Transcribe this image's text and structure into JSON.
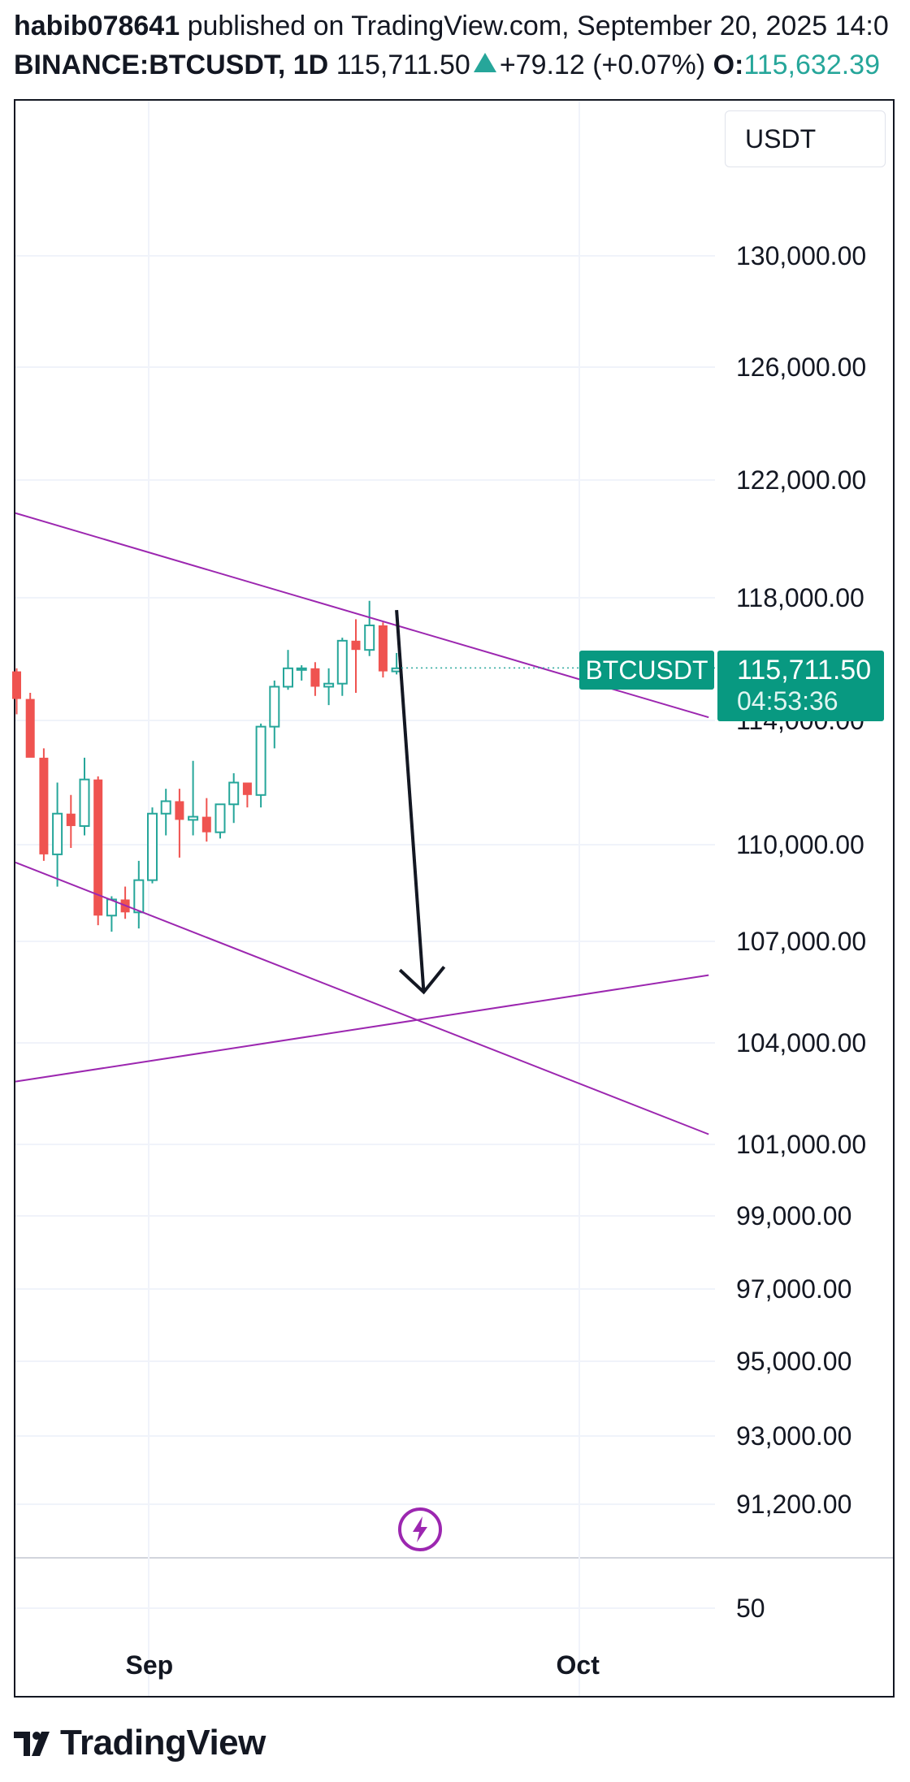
{
  "header": {
    "author": "habib078641",
    "published_text": "published on TradingView.com, September 20, 2025 14:0",
    "symbol": "BINANCE:BTCUSDT, 1D",
    "last_price": "115,711.50",
    "change": "+79.12 (+0.07%)",
    "open_label": "O:",
    "open_value": "115,632.39"
  },
  "currency": "USDT",
  "price_tag": {
    "symbol": "BTCUSDT",
    "price": "115,711.50",
    "countdown": "04:53:36"
  },
  "logo_text": "TradingView",
  "colors": {
    "up": "#26a69a",
    "down": "#ef5350",
    "trendline": "#9c27b0",
    "arrow": "#131722",
    "tag_bg": "#089981"
  },
  "chart_data": {
    "type": "candlestick",
    "symbol": "BINANCE:BTCUSDT",
    "interval": "1D",
    "price_scale_labels": [
      "130,000.00",
      "126,000.00",
      "122,000.00",
      "118,000.00",
      "114,000.00",
      "110,000.00",
      "107,000.00",
      "104,000.00",
      "101,000.00",
      "99,000.00",
      "97,000.00",
      "95,000.00",
      "93,000.00",
      "91,200.00",
      "50"
    ],
    "x_tick_labels": [
      "Sep",
      "Oct"
    ],
    "candles": [
      {
        "o": 115600,
        "h": 115700,
        "l": 114200,
        "c": 114700
      },
      {
        "o": 114700,
        "h": 114900,
        "l": 112900,
        "c": 112800
      },
      {
        "o": 112800,
        "h": 113100,
        "l": 109500,
        "c": 109700
      },
      {
        "o": 109700,
        "h": 112000,
        "l": 108700,
        "c": 111000
      },
      {
        "o": 111000,
        "h": 111600,
        "l": 109900,
        "c": 110600
      },
      {
        "o": 110600,
        "h": 112800,
        "l": 110300,
        "c": 112100
      },
      {
        "o": 112100,
        "h": 112200,
        "l": 107500,
        "c": 107800
      },
      {
        "o": 107800,
        "h": 108400,
        "l": 107300,
        "c": 108300
      },
      {
        "o": 108300,
        "h": 108700,
        "l": 107700,
        "c": 107900
      },
      {
        "o": 107900,
        "h": 109500,
        "l": 107400,
        "c": 108900
      },
      {
        "o": 108900,
        "h": 111200,
        "l": 108800,
        "c": 111000
      },
      {
        "o": 111000,
        "h": 111800,
        "l": 110300,
        "c": 111400
      },
      {
        "o": 111400,
        "h": 111800,
        "l": 109600,
        "c": 110800
      },
      {
        "o": 110800,
        "h": 112700,
        "l": 110300,
        "c": 110900
      },
      {
        "o": 110900,
        "h": 111500,
        "l": 110100,
        "c": 110400
      },
      {
        "o": 110400,
        "h": 111300,
        "l": 110200,
        "c": 111300
      },
      {
        "o": 111300,
        "h": 112300,
        "l": 110700,
        "c": 112000
      },
      {
        "o": 112000,
        "h": 112000,
        "l": 111200,
        "c": 111600
      },
      {
        "o": 111600,
        "h": 113900,
        "l": 111200,
        "c": 113800
      },
      {
        "o": 113800,
        "h": 115300,
        "l": 113100,
        "c": 115100
      },
      {
        "o": 115100,
        "h": 116300,
        "l": 115000,
        "c": 115700
      },
      {
        "o": 115700,
        "h": 115800,
        "l": 115300,
        "c": 115700
      },
      {
        "o": 115700,
        "h": 115900,
        "l": 114800,
        "c": 115100
      },
      {
        "o": 115100,
        "h": 115700,
        "l": 114500,
        "c": 115200
      },
      {
        "o": 115200,
        "h": 116700,
        "l": 114800,
        "c": 116600
      },
      {
        "o": 116600,
        "h": 117300,
        "l": 114900,
        "c": 116300
      },
      {
        "o": 116300,
        "h": 117900,
        "l": 116100,
        "c": 117100
      },
      {
        "o": 117100,
        "h": 117200,
        "l": 115400,
        "c": 115600
      },
      {
        "o": 115600,
        "h": 116200,
        "l": 115500,
        "c": 115700
      }
    ],
    "last_price": 115711.5,
    "annotations": [
      {
        "type": "trendline",
        "from_candle": -1,
        "from_price": 121000,
        "to_candle": 51,
        "to_price": 114100
      },
      {
        "type": "trendline",
        "from_candle": -1,
        "from_price": 109600,
        "to_candle": 51,
        "to_price": 101300
      },
      {
        "type": "trendline",
        "from_candle": -1,
        "from_price": 102800,
        "to_candle": 51,
        "to_price": 106000
      },
      {
        "type": "arrow",
        "from_candle": 28,
        "from_price": 117600,
        "to_candle": 30,
        "to_price": 105500
      }
    ]
  }
}
